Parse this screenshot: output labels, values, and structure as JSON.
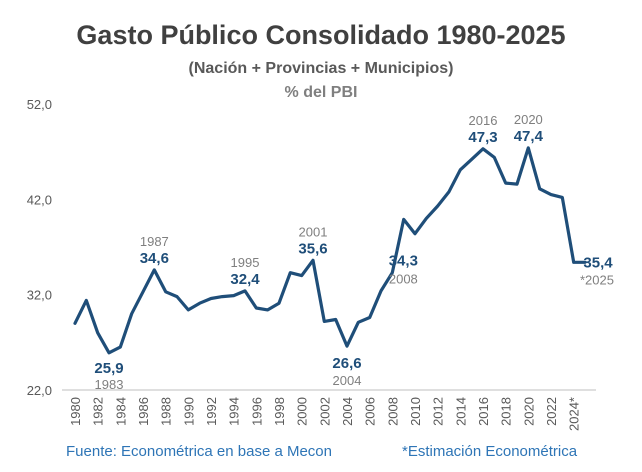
{
  "header": {
    "title": "Gasto Público Consolidado 1980-2025",
    "subtitle": "(Nación + Provincias + Municipios)",
    "unit": "% del PBI"
  },
  "footer": {
    "source": "Fuente: Econométrica en base a Mecon",
    "note": "*Estimación Econométrica"
  },
  "colors": {
    "line": "#1f4e79",
    "axis_text": "#595959",
    "annotation_year": "#7f7f7f",
    "footer": "#2e75b6"
  },
  "chart_data": {
    "type": "line",
    "title": "Gasto Público Consolidado 1980-2025",
    "ylim": [
      22,
      52
    ],
    "yticks": [
      "22,0",
      "32,0",
      "42,0",
      "52,0"
    ],
    "ytick_values": [
      22,
      32,
      42,
      52
    ],
    "xtick_labels": [
      "1980",
      "1982",
      "1984",
      "1986",
      "1988",
      "1990",
      "1992",
      "1994",
      "1996",
      "1998",
      "2000",
      "2002",
      "2004",
      "2006",
      "2008",
      "2010",
      "2012",
      "2014",
      "2016",
      "2018",
      "2020",
      "2022",
      "2024*"
    ],
    "grid": false,
    "series": [
      {
        "x": [
          1980,
          1981,
          1982,
          1983,
          1984,
          1985,
          1986,
          1987,
          1988,
          1989,
          1990,
          1991,
          1992,
          1993,
          1994,
          1995,
          1996,
          1997,
          1998,
          1999,
          2000,
          2001,
          2002,
          2003,
          2004,
          2005,
          2006,
          2007,
          2008,
          2009,
          2010,
          2011,
          2012,
          2013,
          2014,
          2015,
          2016,
          2017,
          2018,
          2019,
          2020,
          2021,
          2022,
          2023,
          2024,
          2025
        ],
        "values": [
          29.0,
          31.4,
          28.0,
          25.9,
          26.5,
          30.0,
          32.3,
          34.6,
          32.3,
          31.8,
          30.4,
          31.1,
          31.6,
          31.8,
          31.9,
          32.4,
          30.6,
          30.4,
          31.1,
          34.3,
          34.0,
          35.6,
          29.2,
          29.4,
          26.6,
          29.1,
          29.6,
          32.4,
          34.3,
          39.9,
          38.4,
          40.0,
          41.3,
          42.8,
          45.1,
          46.2,
          47.3,
          46.4,
          43.7,
          43.6,
          47.4,
          43.1,
          42.5,
          42.2,
          35.4,
          35.4
        ]
      }
    ],
    "annotations": [
      {
        "year_label": "1983",
        "value_label": "25,9",
        "x": 1983,
        "value": 25.9
      },
      {
        "year_label": "1987",
        "value_label": "34,6",
        "x": 1987,
        "value": 34.6
      },
      {
        "year_label": "1995",
        "value_label": "32,4",
        "x": 1995,
        "value": 32.4
      },
      {
        "year_label": "2001",
        "value_label": "35,6",
        "x": 2001,
        "value": 35.6
      },
      {
        "year_label": "2004",
        "value_label": "26,6",
        "x": 2004,
        "value": 26.6
      },
      {
        "year_label": "2008",
        "value_label": "34,3",
        "x": 2008,
        "value": 34.3
      },
      {
        "year_label": "2016",
        "value_label": "47,3",
        "x": 2016,
        "value": 47.3
      },
      {
        "year_label": "2020",
        "value_label": "47,4",
        "x": 2020,
        "value": 47.4
      },
      {
        "year_label": "*2025",
        "value_label": "35,4",
        "x": 2025,
        "value": 35.4
      }
    ]
  }
}
